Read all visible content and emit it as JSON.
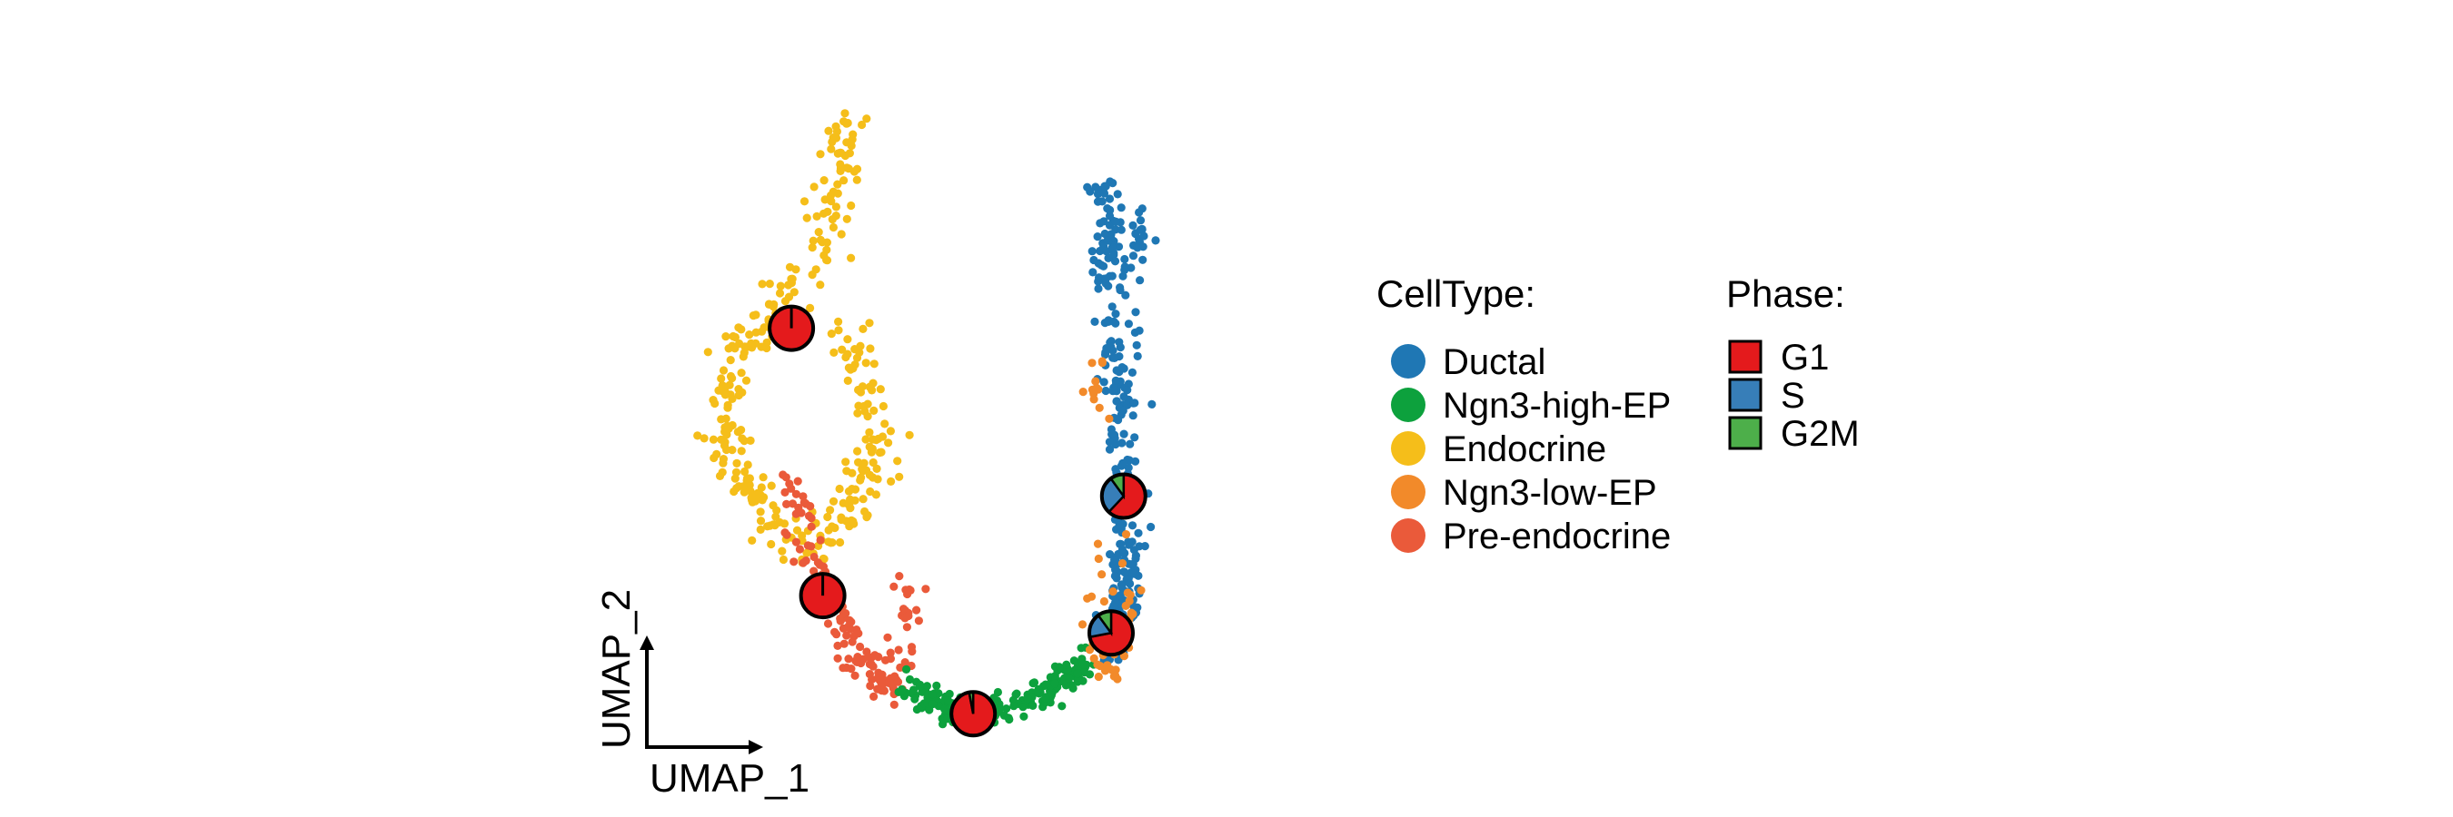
{
  "chart_data": {
    "type": "scatter",
    "xlabel": "UMAP_1",
    "ylabel": "UMAP_2",
    "xlim": [
      0,
      100
    ],
    "ylim": [
      0,
      100
    ],
    "grid": false,
    "legend_position": "right",
    "legend_celltype": {
      "title": "CellType:",
      "items": [
        {
          "label": "Ductal",
          "color": "#1F77B4"
        },
        {
          "label": "Ngn3-high-EP",
          "color": "#0DA13D"
        },
        {
          "label": "Endocrine",
          "color": "#F5BE1A"
        },
        {
          "label": "Ngn3-low-EP",
          "color": "#F28A2A"
        },
        {
          "label": "Pre-endocrine",
          "color": "#EA5A3A"
        }
      ]
    },
    "legend_phase": {
      "title": "Phase:",
      "items": [
        {
          "label": "G1",
          "color": "#E41A1C"
        },
        {
          "label": "S",
          "color": "#377EB8"
        },
        {
          "label": "G2M",
          "color": "#4DAF4A"
        }
      ]
    },
    "clusters": [
      {
        "name": "Endocrine",
        "color": "#F5BE1A",
        "n": 340,
        "seed": 11,
        "path": [
          [
            28,
            97
          ],
          [
            26,
            88
          ],
          [
            25,
            80
          ],
          [
            22,
            74
          ],
          [
            15,
            66
          ],
          [
            10,
            60
          ],
          [
            8,
            52
          ],
          [
            9,
            45
          ],
          [
            12,
            38
          ],
          [
            16,
            32
          ],
          [
            22,
            27
          ],
          [
            27,
            33
          ],
          [
            31,
            40
          ],
          [
            33,
            48
          ],
          [
            30,
            56
          ],
          [
            29,
            64
          ]
        ],
        "spread": 3.2
      },
      {
        "name": "Pre-endocrine",
        "color": "#EA5A3A",
        "n": 150,
        "seed": 23,
        "path": [
          [
            18,
            40
          ],
          [
            20,
            34
          ],
          [
            22,
            28
          ],
          [
            24,
            23
          ],
          [
            26,
            18
          ],
          [
            28,
            14
          ],
          [
            30,
            10
          ],
          [
            33,
            8
          ],
          [
            35,
            6
          ],
          [
            38,
            14
          ],
          [
            37,
            22
          ]
        ],
        "spread": 2.4
      },
      {
        "name": "Ngn3-high-EP",
        "color": "#0DA13D",
        "n": 210,
        "seed": 37,
        "path": [
          [
            36,
            7
          ],
          [
            40,
            5
          ],
          [
            44,
            3
          ],
          [
            48,
            2
          ],
          [
            52,
            3
          ],
          [
            56,
            4
          ],
          [
            60,
            6
          ],
          [
            64,
            8
          ],
          [
            66,
            11
          ]
        ],
        "spread": 2.2
      },
      {
        "name": "Ductal",
        "color": "#1F77B4",
        "n": 300,
        "seed": 49,
        "path": [
          [
            69,
            88
          ],
          [
            70,
            80
          ],
          [
            69,
            72
          ],
          [
            70,
            64
          ],
          [
            71,
            56
          ],
          [
            71,
            48
          ],
          [
            71,
            40
          ],
          [
            72,
            32
          ],
          [
            71,
            24
          ],
          [
            70,
            16
          ],
          [
            70,
            10
          ],
          [
            73,
            20
          ],
          [
            74,
            30
          ],
          [
            73,
            70
          ],
          [
            75,
            82
          ]
        ],
        "spread": 2.1
      },
      {
        "name": "Ngn3-low-EP",
        "color": "#F28A2A",
        "n": 60,
        "seed": 61,
        "path": [
          [
            69,
            30
          ],
          [
            68,
            22
          ],
          [
            67,
            16
          ],
          [
            68,
            10
          ],
          [
            70,
            8
          ],
          [
            72,
            14
          ],
          [
            73,
            24
          ],
          [
            68,
            60
          ],
          [
            67,
            50
          ]
        ],
        "spread": 1.8
      }
    ],
    "pies": [
      {
        "x": 19,
        "y": 64,
        "fractions": {
          "G1": 1.0,
          "S": 0.0,
          "G2M": 0.0
        }
      },
      {
        "x": 24,
        "y": 21,
        "fractions": {
          "G1": 1.0,
          "S": 0.0,
          "G2M": 0.0
        }
      },
      {
        "x": 48,
        "y": 2,
        "fractions": {
          "G1": 0.97,
          "S": 0.0,
          "G2M": 0.03
        }
      },
      {
        "x": 72,
        "y": 37,
        "fractions": {
          "G1": 0.62,
          "S": 0.28,
          "G2M": 0.1
        }
      },
      {
        "x": 70,
        "y": 15,
        "fractions": {
          "G1": 0.72,
          "S": 0.18,
          "G2M": 0.1
        }
      }
    ]
  }
}
